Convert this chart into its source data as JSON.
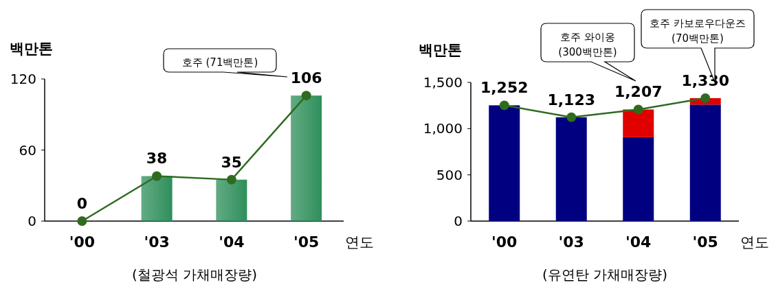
{
  "chart_data": [
    {
      "type": "bar",
      "ylabel": "백만톤",
      "xlabel": "연도",
      "categories": [
        "'00",
        "'03",
        "'04",
        "'05"
      ],
      "ylim": [
        0,
        120
      ],
      "yticks": [
        0,
        60,
        120
      ],
      "grid": false,
      "series": [
        {
          "color": "#2f8f5b",
          "values": [
            0,
            38,
            35,
            106
          ]
        },
        {
          "type": "line",
          "color": "#2e6b1f",
          "marker": "circle",
          "values": [
            0,
            38,
            35,
            106
          ],
          "value_labels": [
            "0",
            "38",
            "35",
            "106"
          ]
        }
      ],
      "annotations": [
        "호주 (71백만톤)",
        "(철광석  가채매장량)"
      ]
    },
    {
      "type": "bar",
      "stacked": true,
      "ylabel": "백만톤",
      "xlabel": "연도",
      "categories": [
        "'00",
        "'03",
        "'04",
        "'05"
      ],
      "ylim": [
        0,
        1500
      ],
      "yticks": [
        0,
        500,
        {
          "value": 1000,
          "label": "1,000"
        },
        {
          "value": 1500,
          "label": "1,500"
        }
      ],
      "grid": false,
      "series": [
        {
          "color": "#000080",
          "values": [
            1252,
            1123,
            907,
            1260
          ]
        },
        {
          "color": "#e00000",
          "values": [
            null,
            null,
            300,
            70
          ]
        },
        {
          "type": "line",
          "color": "#2e6b1f",
          "marker": "circle",
          "values": [
            1252,
            1123,
            1207,
            1330
          ],
          "value_labels": [
            "1,252",
            "1,123",
            "1,207",
            "1,330"
          ]
        }
      ],
      "annotations": [
        "호주 와이옹\n(300백만톤)",
        "호주 카보로우다운즈\n(70백만톤)",
        "(유연탄  가채매장량)"
      ]
    }
  ]
}
